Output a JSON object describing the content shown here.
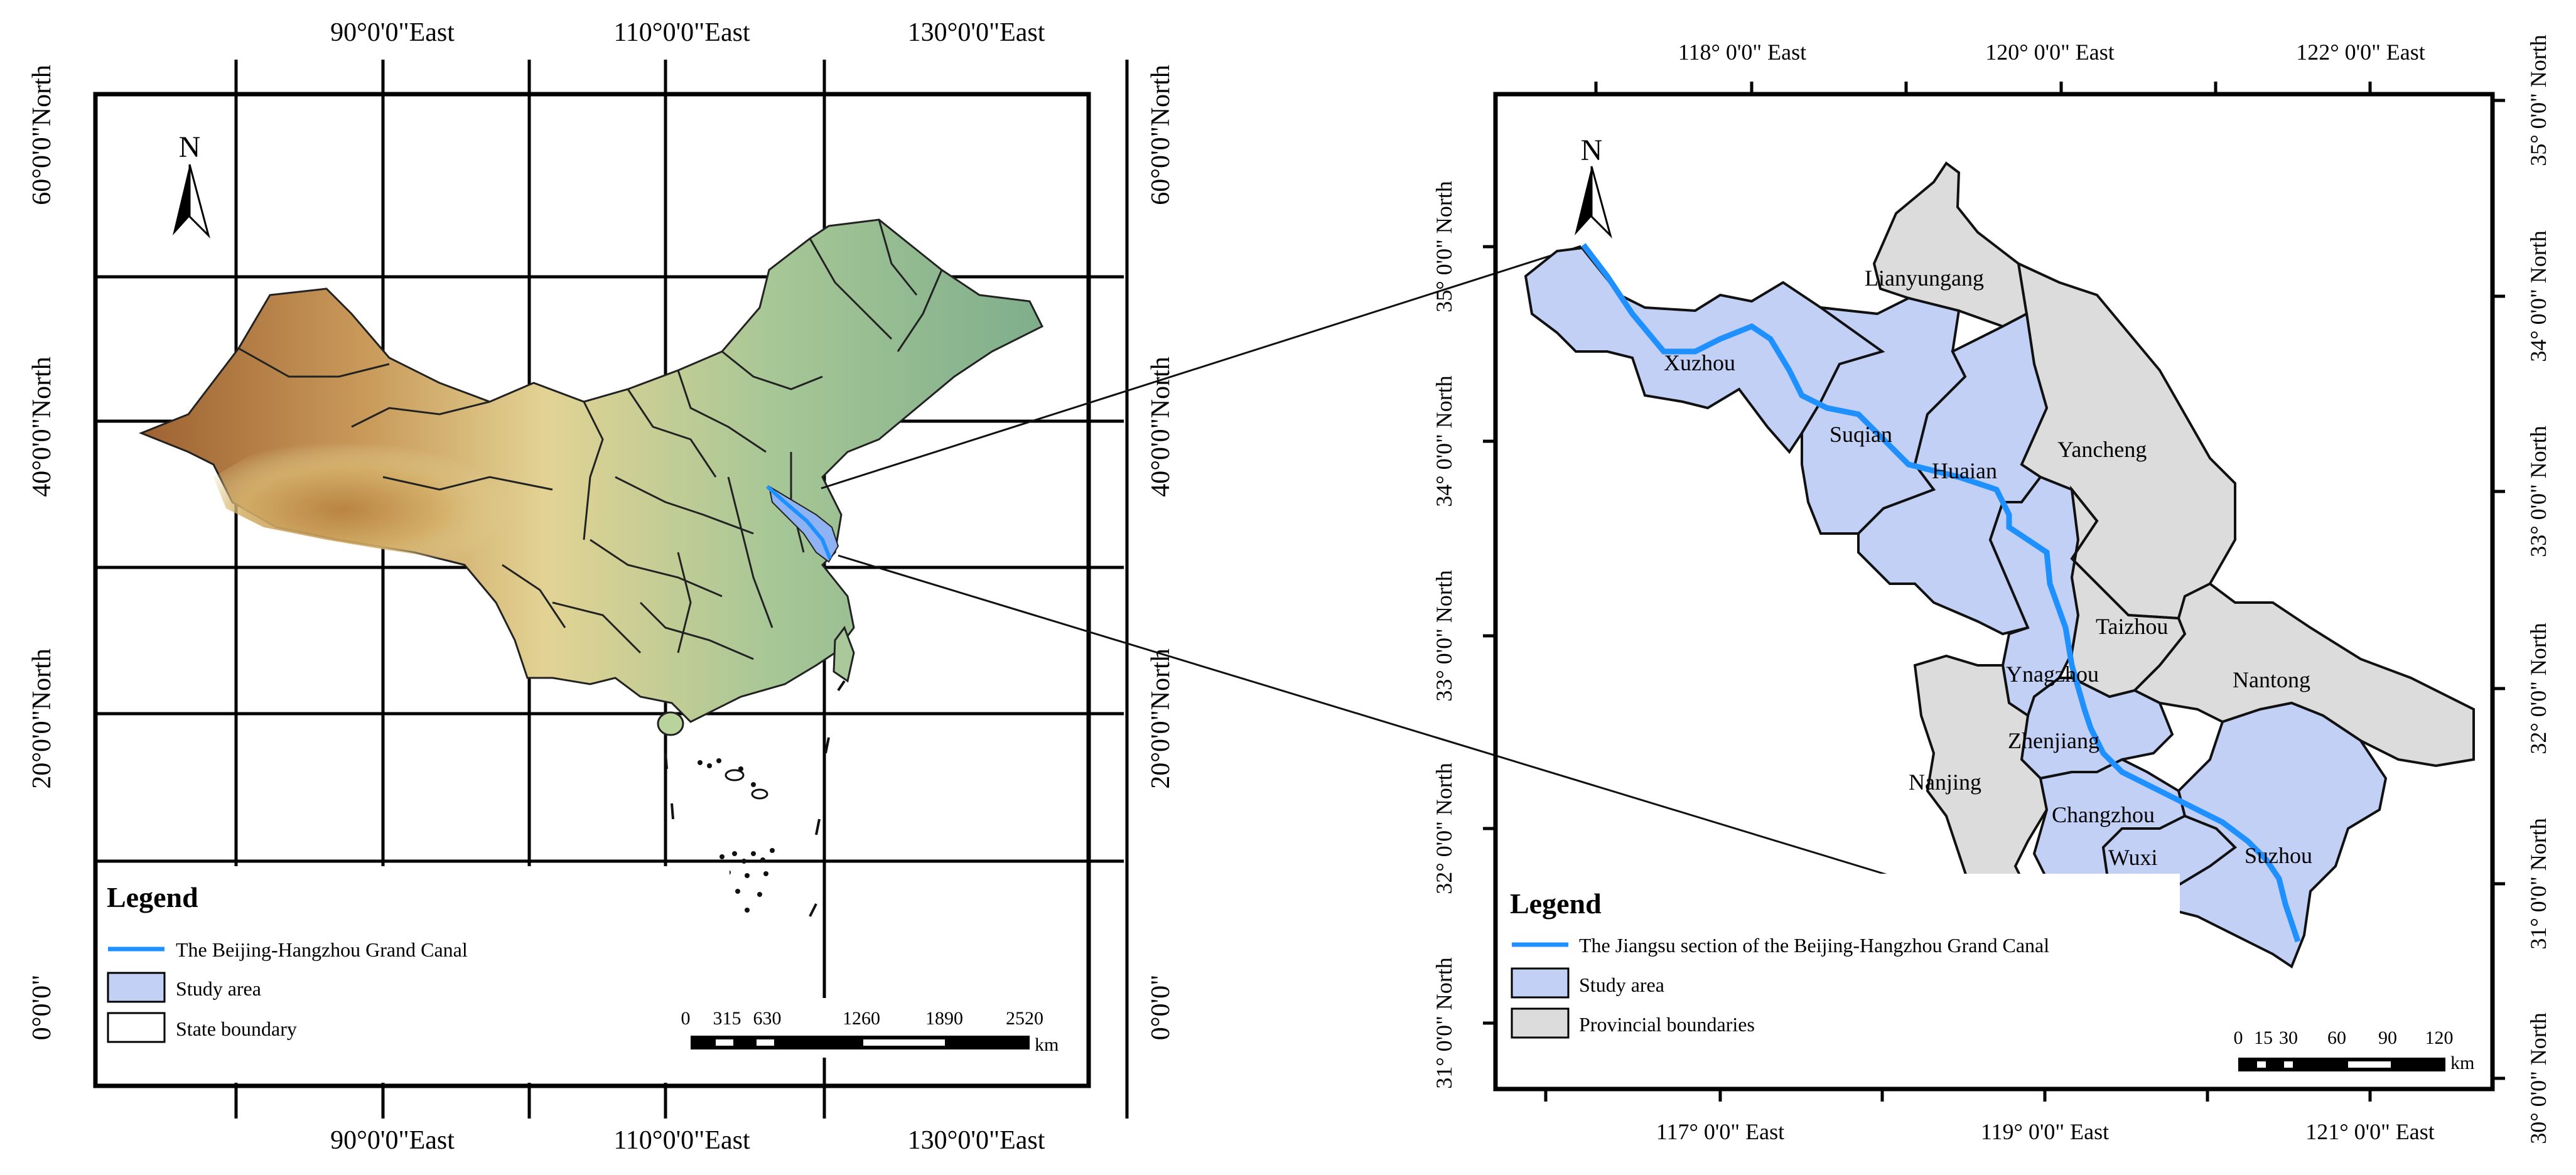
{
  "left_map": {
    "top_labels": [
      "90°0'0\"East",
      "110°0'0\"East",
      "130°0'0\"East"
    ],
    "bottom_labels": [
      "90°0'0\"East",
      "110°0'0\"East",
      "130°0'0\"East"
    ],
    "left_labels": [
      "60°0'0\"North",
      "40°0'0\"North",
      "20°0'0\"North",
      "0°0'0\""
    ],
    "right_labels": [
      "60°0'0\"North",
      "40°0'0\"North",
      "20°0'0\"North",
      "0°0'0\""
    ],
    "north": "N",
    "legend": {
      "title": "Legend",
      "items": [
        "The Beijing-Hangzhou Grand Canal",
        "Study area",
        "State boundary"
      ]
    },
    "scale_labels": [
      "0",
      "315",
      "630",
      "1260",
      "1890",
      "2520"
    ],
    "scale_unit": "km"
  },
  "right_map": {
    "top_labels": [
      "118° 0'0\" East",
      "120° 0'0\" East",
      "122° 0'0\" East"
    ],
    "bottom_labels": [
      "117° 0'0\" East",
      "119° 0'0\" East",
      "121° 0'0\" East"
    ],
    "left_labels": [
      "35° 0'0\" North",
      "34° 0'0\" North",
      "33° 0'0\" North",
      "32° 0'0\" North",
      "31° 0'0\" North"
    ],
    "right_labels": [
      "35° 0'0\" North",
      "34° 0'0\" North",
      "33° 0'0\" North",
      "32° 0'0\" North",
      "31° 0'0\" North",
      "30° 0'0\" North"
    ],
    "north": "N",
    "cities": {
      "lianyungang": "Lianyungang",
      "xuzhou": "Xuzhou",
      "suqian": "Suqian",
      "huaian": "Huaian",
      "yancheng": "Yancheng",
      "taizhou": "Taizhou",
      "yangzhou": "Ynagzhou",
      "nantong": "Nantong",
      "zhenjiang": "Zhenjiang",
      "nanjing": "Nanjing",
      "changzhou": "Changzhou",
      "wuxi": "Wuxi",
      "suzhou": "Suzhou"
    },
    "legend": {
      "title": "Legend",
      "items": [
        "The Jiangsu section of the Beijing-Hangzhou Grand Canal",
        "Study area",
        "Provincial boundaries"
      ]
    },
    "scale_labels": [
      "0",
      "15",
      "30",
      "60",
      "90",
      "120"
    ],
    "scale_unit": "km"
  },
  "colors": {
    "canal": "#1e90ff",
    "study_area": "#c2d0f6",
    "provincial": "#dcdcdc",
    "frame": "#000000"
  }
}
